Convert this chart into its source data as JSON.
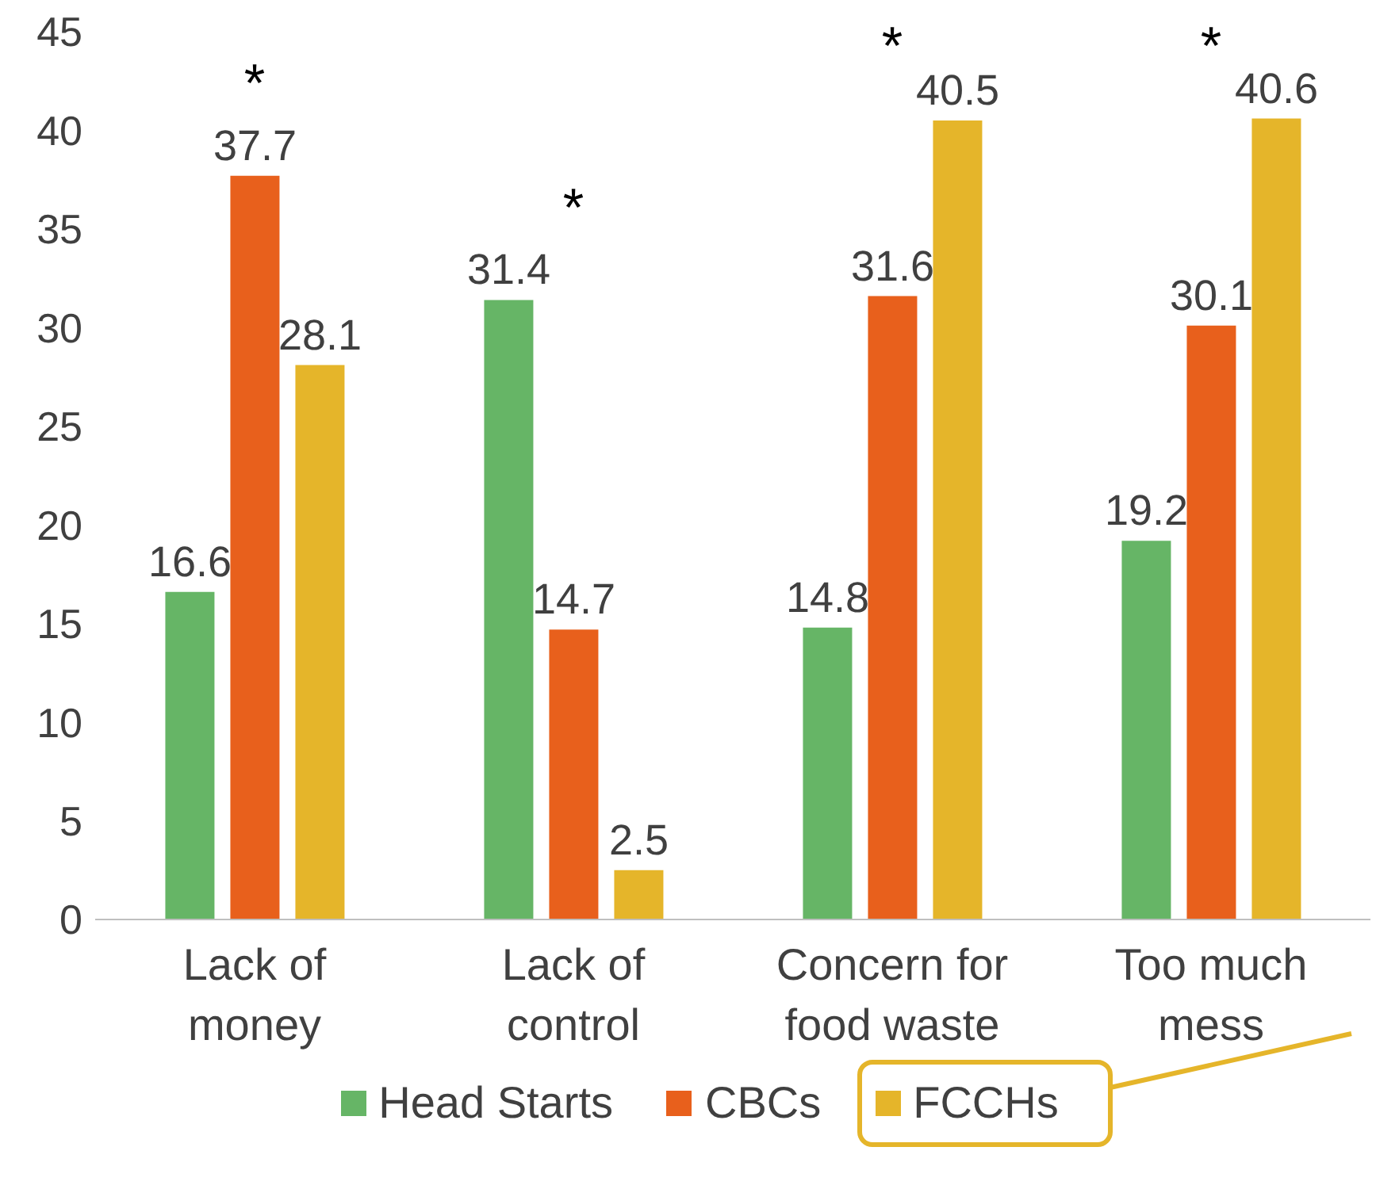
{
  "chart_data": {
    "type": "bar",
    "categories": [
      "Lack of money",
      "Lack of control",
      "Concern for food waste",
      "Too much mess"
    ],
    "series": [
      {
        "name": "Head Starts",
        "color": "#66b566",
        "values": [
          16.6,
          31.4,
          14.8,
          19.2
        ]
      },
      {
        "name": "CBCs",
        "color": "#e8601c",
        "values": [
          37.7,
          14.7,
          31.6,
          30.1
        ]
      },
      {
        "name": "FCCHs",
        "color": "#e5b52a",
        "values": [
          28.1,
          2.5,
          40.5,
          40.6
        ]
      }
    ],
    "ylim": [
      0,
      45
    ],
    "yticks": [
      0,
      5,
      10,
      15,
      20,
      25,
      30,
      35,
      40,
      45
    ],
    "grid": false,
    "legend": "bottom",
    "data_labels": true,
    "annotations": [
      "*",
      "*",
      "*",
      "*"
    ]
  }
}
